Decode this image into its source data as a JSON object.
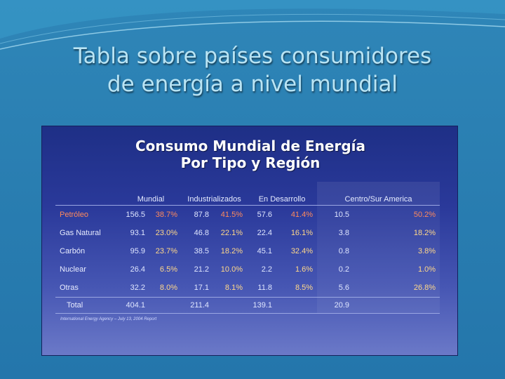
{
  "slide": {
    "title_line1": "Tabla sobre países consumidores",
    "title_line2": "de energía a nivel mundial"
  },
  "chart_data": {
    "type": "table",
    "title_line1": "Consumo Mundial de Energía",
    "title_line2": "Por Tipo y Región",
    "columns": [
      "Mundial",
      "Industrializados",
      "En Desarrollo",
      "Centro/Sur America"
    ],
    "rows": [
      {
        "label": "Petróleo",
        "values": [
          "156.5",
          "38.7%",
          "87.8",
          "41.5%",
          "57.6",
          "41.4%",
          "10.5",
          "50.2%"
        ]
      },
      {
        "label": "Gas Natural",
        "values": [
          "93.1",
          "23.0%",
          "46.8",
          "22.1%",
          "22.4",
          "16.1%",
          "3.8",
          "18.2%"
        ]
      },
      {
        "label": "Carbón",
        "values": [
          "95.9",
          "23.7%",
          "38.5",
          "18.2%",
          "45.1",
          "32.4%",
          "0.8",
          "3.8%"
        ]
      },
      {
        "label": "Nuclear",
        "values": [
          "26.4",
          "6.5%",
          "21.2",
          "10.0%",
          "2.2",
          "1.6%",
          "0.2",
          "1.0%"
        ]
      },
      {
        "label": "Otras",
        "values": [
          "32.2",
          "8.0%",
          "17.1",
          "8.1%",
          "11.8",
          "8.5%",
          "5.6",
          "26.8%"
        ]
      }
    ],
    "total": {
      "label": "Total",
      "values": [
        "404.1",
        "",
        "211.4",
        "",
        "139.1",
        "",
        "20.9",
        ""
      ]
    },
    "source": "International Energy Agency – July 13, 2004 Report"
  },
  "colors": {
    "background": "#2a7fb2",
    "title_text": "#b9e4f4",
    "panel": "#2a399a",
    "percent_highlight": "#ff8a5c",
    "percent_normal": "#ffd88a"
  }
}
